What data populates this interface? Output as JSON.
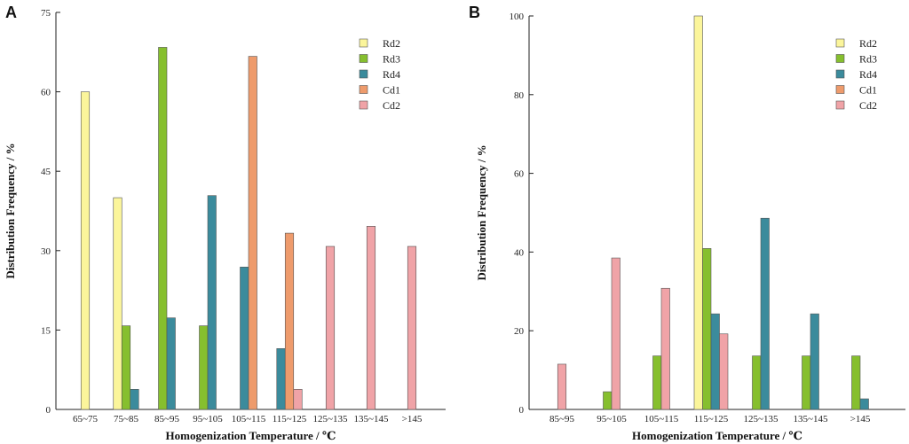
{
  "chart_data": [
    {
      "panel": "A",
      "type": "bar",
      "xlabel": "Homogenization Temperature / ℃",
      "ylabel": "Distribution Frequency / %",
      "ylim": [
        0,
        75
      ],
      "yticks": [
        0,
        15,
        30,
        45,
        60,
        75
      ],
      "categories": [
        "65~75",
        "75~85",
        "85~95",
        "95~105",
        "105~115",
        "115~125",
        "125~135",
        "135~145",
        ">145"
      ],
      "series": [
        {
          "name": "Rd2",
          "color": "#fbf59b",
          "values": [
            60,
            40,
            0,
            0,
            0,
            0,
            0,
            0,
            0
          ]
        },
        {
          "name": "Rd3",
          "color": "#86bf2e",
          "values": [
            0,
            15.8,
            68.4,
            15.8,
            0,
            0,
            0,
            0,
            0
          ]
        },
        {
          "name": "Rd4",
          "color": "#3b8b9c",
          "values": [
            0,
            3.8,
            17.3,
            40.4,
            26.9,
            11.5,
            0,
            0,
            0
          ]
        },
        {
          "name": "Cd1",
          "color": "#ee9b6c",
          "values": [
            0,
            0,
            0,
            0,
            66.7,
            33.3,
            0,
            0,
            0
          ]
        },
        {
          "name": "Cd2",
          "color": "#f0a3a7",
          "values": [
            0,
            0,
            0,
            0,
            0,
            3.8,
            30.8,
            34.6,
            30.8
          ]
        }
      ],
      "legend_position": "top-right"
    },
    {
      "panel": "B",
      "type": "bar",
      "xlabel": "Homogenization Temperature / ℃",
      "ylabel": "Distribution Frequency / %",
      "ylim": [
        0,
        100
      ],
      "yticks": [
        0,
        20,
        40,
        60,
        80,
        100
      ],
      "categories": [
        "85~95",
        "95~105",
        "105~115",
        "115~125",
        "125~135",
        "135~145",
        ">145"
      ],
      "series": [
        {
          "name": "Rd2",
          "color": "#fbf59b",
          "values": [
            0,
            0,
            0,
            100,
            0,
            0,
            0
          ]
        },
        {
          "name": "Rd3",
          "color": "#86bf2e",
          "values": [
            0,
            4.5,
            13.6,
            40.9,
            13.6,
            13.6,
            13.6
          ]
        },
        {
          "name": "Rd4",
          "color": "#3b8b9c",
          "values": [
            0,
            0,
            0,
            24.3,
            48.6,
            24.3,
            2.7
          ]
        },
        {
          "name": "Cd1",
          "color": "#ee9b6c",
          "values": [
            0,
            0,
            0,
            0,
            0,
            0,
            0
          ]
        },
        {
          "name": "Cd2",
          "color": "#f0a3a7",
          "values": [
            11.5,
            38.5,
            30.8,
            19.2,
            0,
            0,
            0
          ]
        }
      ],
      "legend_position": "top-right"
    }
  ]
}
